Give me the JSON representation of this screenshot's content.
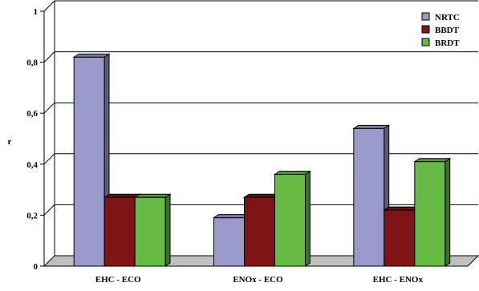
{
  "chart_data": {
    "type": "bar",
    "title": "",
    "xlabel": "",
    "ylabel": "r",
    "ylim": [
      0,
      1
    ],
    "yticks": [
      "0",
      "0,2",
      "0,4",
      "0,6",
      "0,8",
      "1"
    ],
    "grid": true,
    "legend_position": "top-right",
    "categories": [
      "EHC - ECO",
      "ENOx - ECO",
      "EHC - ENOx"
    ],
    "series": [
      {
        "name": "NRTC",
        "color": "#9999cc",
        "values": [
          0.82,
          0.19,
          0.54
        ]
      },
      {
        "name": "BBDT",
        "color": "#7f1414",
        "values": [
          0.27,
          0.27,
          0.22
        ]
      },
      {
        "name": "BRDT",
        "color": "#66bb44",
        "values": [
          0.27,
          0.36,
          0.41
        ]
      }
    ]
  }
}
